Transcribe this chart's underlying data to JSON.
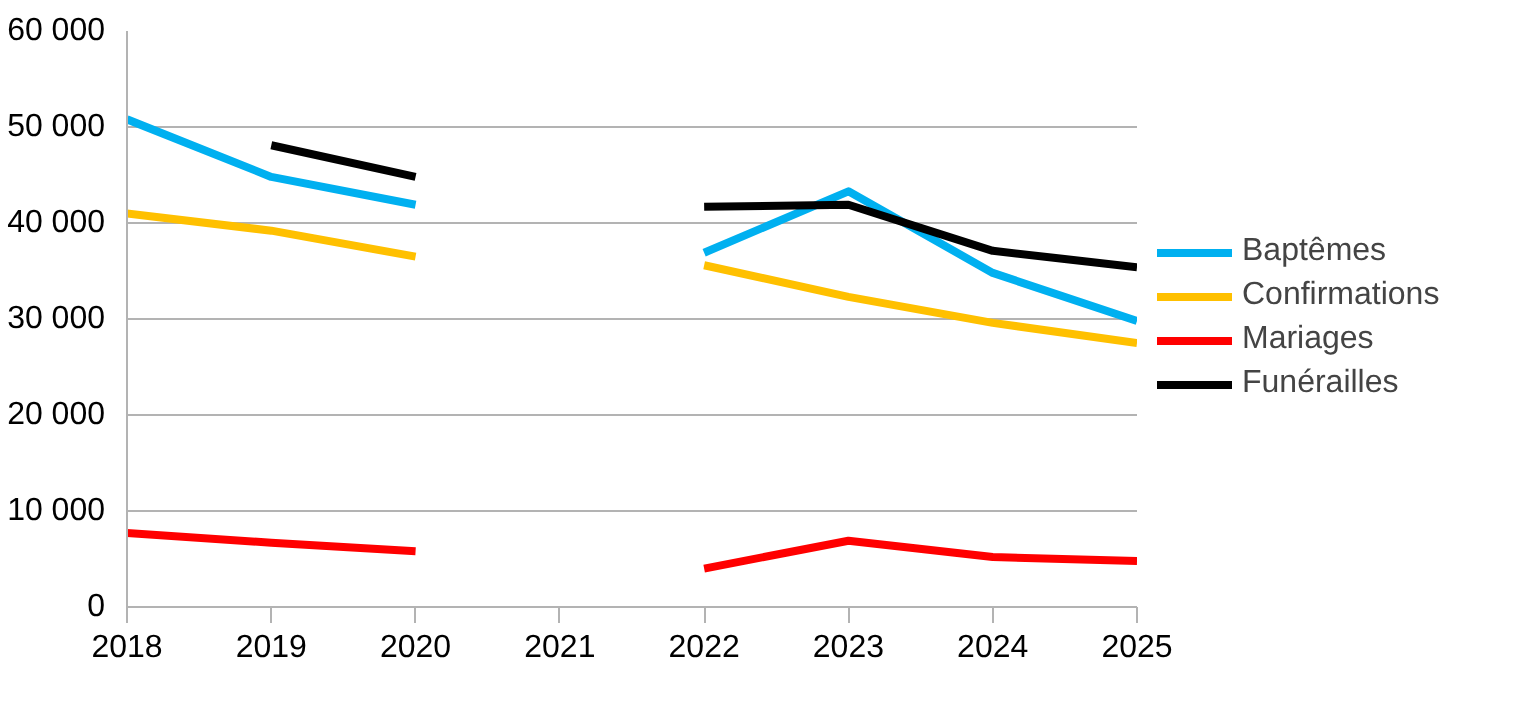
{
  "chart_data": {
    "type": "line",
    "x": [
      2018,
      2019,
      2020,
      2021,
      2022,
      2023,
      2024,
      2025
    ],
    "xlim": [
      2018,
      2025
    ],
    "xticks": [
      2018,
      2019,
      2020,
      2021,
      2022,
      2023,
      2024,
      2025
    ],
    "ylim": [
      0,
      60000
    ],
    "yticks": [
      0,
      {
        "value": 10000,
        "label": "10 000"
      },
      {
        "value": 20000,
        "label": "20 000"
      },
      {
        "value": 30000,
        "label": "30 000"
      },
      {
        "value": 40000,
        "label": "40 000"
      },
      {
        "value": 50000,
        "label": "50 000"
      },
      {
        "value": 60000,
        "label": "60 000"
      }
    ],
    "grid": "y",
    "legend": "right",
    "marker": "none",
    "line_style": "solid",
    "series": [
      {
        "name": "Baptêmes",
        "color": "#00b0f0",
        "values": [
          50800,
          44800,
          41900,
          null,
          36900,
          43300,
          34800,
          29800
        ]
      },
      {
        "name": "Confirmations",
        "color": "#ffc000",
        "values": [
          41000,
          39200,
          36500,
          null,
          35600,
          32300,
          29600,
          27500
        ]
      },
      {
        "name": "Mariages",
        "color": "#ff0000",
        "values": [
          7700,
          6700,
          5800,
          null,
          4000,
          6900,
          5200,
          4800
        ]
      },
      {
        "name": "Funérailles",
        "color": "#000000",
        "values": [
          null,
          48100,
          44800,
          null,
          41700,
          41900,
          37100,
          35400
        ]
      }
    ]
  }
}
